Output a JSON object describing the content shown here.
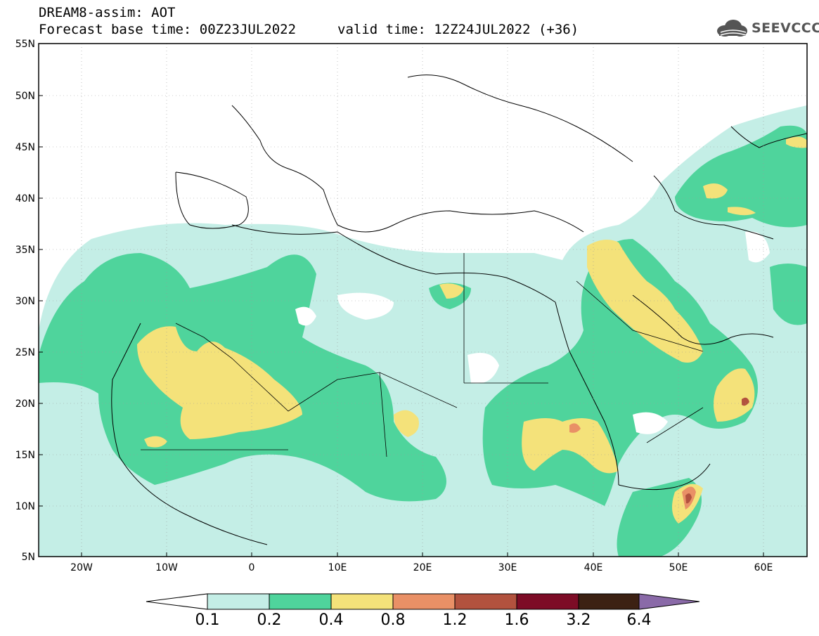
{
  "title_line1": "DREAM8-assim: AOT",
  "title_line2": "Forecast base time: 00Z23JUL2022",
  "valid_time": "valid time: 12Z24JUL2022 (+36)",
  "logo_text": "SEEVCCC",
  "lat_labels": [
    "55N",
    "50N",
    "45N",
    "40N",
    "35N",
    "30N",
    "25N",
    "20N",
    "15N",
    "10N",
    "5N"
  ],
  "lon_labels": [
    "20W",
    "10W",
    "0",
    "10E",
    "20E",
    "30E",
    "40E",
    "50E",
    "60E"
  ],
  "colorbar": {
    "levels": [
      "0.1",
      "0.2",
      "0.4",
      "0.8",
      "1.2",
      "1.6",
      "3.2",
      "6.4"
    ],
    "colors": [
      "#ffffff",
      "#c4eee6",
      "#4fd49c",
      "#f4e27a",
      "#e99066",
      "#b2523e",
      "#7d0c26",
      "#3c2113",
      "#8a6aa8"
    ]
  }
}
